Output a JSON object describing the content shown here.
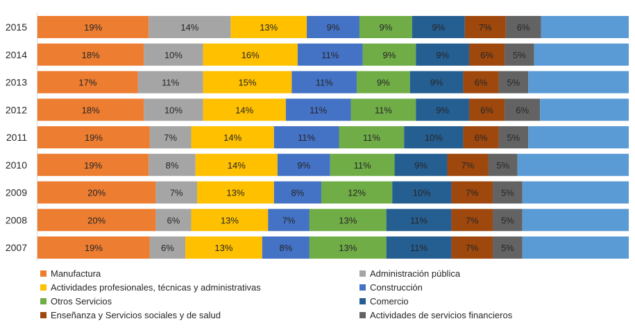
{
  "chart_data": {
    "type": "bar",
    "orientation": "horizontal",
    "stacked": true,
    "categories": [
      "2015",
      "2014",
      "2013",
      "2012",
      "2011",
      "2010",
      "2009",
      "2008",
      "2007"
    ],
    "series": [
      {
        "name": "Manufactura",
        "color": "#ED7D31",
        "values": [
          19,
          18,
          17,
          18,
          19,
          19,
          20,
          20,
          19
        ],
        "labels": [
          "19%",
          "18%",
          "17%",
          "18%",
          "19%",
          "19%",
          "20%",
          "20%",
          "19%"
        ]
      },
      {
        "name": "Administración pública",
        "color": "#A5A5A5",
        "values": [
          14,
          10,
          11,
          10,
          7,
          8,
          7,
          6,
          6
        ],
        "labels": [
          "14%",
          "10%",
          "11%",
          "10%",
          "7%",
          "8%",
          "7%",
          "6%",
          "6%"
        ]
      },
      {
        "name": "Actividades profesionales, técnicas y administrativas",
        "color": "#FFC000",
        "values": [
          13,
          16,
          15,
          14,
          14,
          14,
          13,
          13,
          13
        ],
        "labels": [
          "13%",
          "16%",
          "15%",
          "14%",
          "14%",
          "14%",
          "13%",
          "13%",
          "13%"
        ]
      },
      {
        "name": "Construcción",
        "color": "#4472C4",
        "values": [
          9,
          11,
          11,
          11,
          11,
          9,
          8,
          7,
          8
        ],
        "labels": [
          "9%",
          "11%",
          "11%",
          "11%",
          "11%",
          "9%",
          "8%",
          "7%",
          "8%"
        ]
      },
      {
        "name": "Otros Servicios",
        "color": "#70AD47",
        "values": [
          9,
          9,
          9,
          11,
          11,
          11,
          12,
          13,
          13
        ],
        "labels": [
          "9%",
          "9%",
          "9%",
          "11%",
          "11%",
          "11%",
          "12%",
          "13%",
          "13%"
        ]
      },
      {
        "name": "Comercio",
        "color": "#255E91",
        "values": [
          9,
          9,
          9,
          9,
          10,
          9,
          10,
          11,
          11
        ],
        "labels": [
          "9%",
          "9%",
          "9%",
          "9%",
          "10%",
          "9%",
          "10%",
          "11%",
          "11%"
        ]
      },
      {
        "name": "Enseñanza  y Servicios sociales y de salud",
        "color": "#9E480E",
        "values": [
          7,
          6,
          6,
          6,
          6,
          7,
          7,
          7,
          7
        ],
        "labels": [
          "7%",
          "6%",
          "6%",
          "6%",
          "6%",
          "7%",
          "7%",
          "7%",
          "7%"
        ]
      },
      {
        "name": "Actividades de servicios financieros",
        "color": "#636363",
        "values": [
          6,
          5,
          5,
          6,
          5,
          5,
          5,
          5,
          5
        ],
        "labels": [
          "6%",
          "5%",
          "5%",
          "6%",
          "5%",
          "5%",
          "5%",
          "5%",
          "5%"
        ]
      },
      {
        "name": "",
        "color": "#5B9BD5",
        "values": [
          15,
          16,
          17,
          15,
          17,
          19,
          18,
          18,
          18
        ],
        "labels": []
      }
    ],
    "xlim": [
      0,
      100
    ],
    "grid": false,
    "legend_position": "bottom",
    "legend_columns": 2
  }
}
